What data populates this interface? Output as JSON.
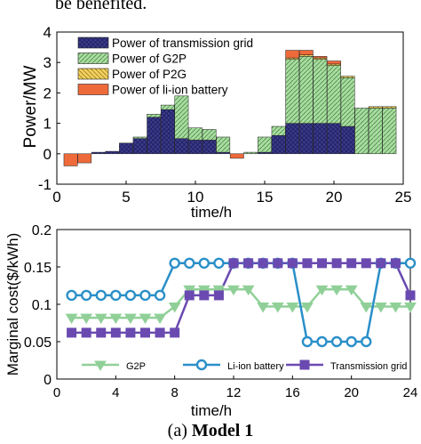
{
  "header_fragment": "be benefited.",
  "caption": {
    "prefix": "(a) ",
    "bold": "Model 1"
  },
  "colors": {
    "grid": "#3b3b8c",
    "g2p": "#a8dca0",
    "p2g": "#f2d060",
    "battery": "#ee6a3a",
    "line": "#2a8fc8",
    "g2p_line": "#90d098",
    "grid_line": "#6a4ab0"
  },
  "chart_data": [
    {
      "type": "bar",
      "stacked": true,
      "xlabel": "time/h",
      "ylabel": "Power/MW",
      "xlim": [
        0,
        25
      ],
      "ylim": [
        -1,
        4
      ],
      "xticks": [
        "0",
        "5",
        "10",
        "15",
        "20",
        "25"
      ],
      "yticks": [
        "-1",
        "0",
        "1",
        "2",
        "3",
        "4"
      ],
      "legend_position": "top-left",
      "x": [
        1,
        2,
        3,
        4,
        5,
        6,
        7,
        8,
        9,
        10,
        11,
        12,
        13,
        14,
        15,
        16,
        17,
        18,
        19,
        20,
        21,
        22,
        23,
        24
      ],
      "series": [
        {
          "name": "Power of transmission grid",
          "values": [
            0,
            0,
            0.05,
            0.08,
            0.35,
            0.5,
            1.2,
            1.45,
            0.5,
            0.45,
            0.45,
            0.05,
            0,
            0,
            0.05,
            0.6,
            1.0,
            1.0,
            1.0,
            1.0,
            0.9,
            0,
            0,
            0
          ]
        },
        {
          "name": "Power of G2P",
          "values": [
            0,
            0,
            0,
            0,
            0,
            0.05,
            0.1,
            0.15,
            1.4,
            0.4,
            0.35,
            0.5,
            0,
            0.05,
            0.5,
            0.3,
            2.1,
            2.2,
            2.1,
            1.9,
            1.6,
            1.5,
            1.5,
            1.5
          ]
        },
        {
          "name": "Power of P2G",
          "values": [
            0,
            0,
            0,
            0,
            0,
            0,
            0,
            0,
            0,
            0,
            0,
            0,
            0,
            0,
            0,
            0,
            0.05,
            0.05,
            0.05,
            0.05,
            0.05,
            0,
            0.05,
            0.05
          ]
        },
        {
          "name": "Power of li-ion battery",
          "values": [
            -0.4,
            -0.3,
            0,
            0,
            0,
            0,
            0,
            0,
            0,
            0,
            0,
            0,
            -0.15,
            0,
            0,
            0,
            0.25,
            0.15,
            0.05,
            0.1,
            0,
            0,
            0,
            0
          ]
        }
      ]
    },
    {
      "type": "line",
      "xlabel": "time/h",
      "ylabel": "Marginal cost($/kWh)",
      "xlim": [
        0,
        24
      ],
      "ylim": [
        0,
        0.2
      ],
      "xticks": [
        "0",
        "4",
        "8",
        "12",
        "16",
        "20",
        "24"
      ],
      "yticks": [
        "0",
        "0.05",
        "0.1",
        "0.15",
        "0.2"
      ],
      "legend_position": "bottom",
      "x": [
        1,
        2,
        3,
        4,
        5,
        6,
        7,
        8,
        9,
        10,
        11,
        12,
        13,
        14,
        15,
        16,
        17,
        18,
        19,
        20,
        21,
        22,
        23,
        24
      ],
      "series": [
        {
          "name": "G2P",
          "values": [
            0.082,
            0.082,
            0.082,
            0.082,
            0.082,
            0.082,
            0.082,
            0.097,
            0.12,
            0.12,
            0.12,
            0.12,
            0.12,
            0.097,
            0.097,
            0.097,
            0.097,
            0.12,
            0.12,
            0.12,
            0.097,
            0.097,
            0.097,
            0.097
          ]
        },
        {
          "name": "Li-ion battery",
          "values": [
            0.112,
            0.112,
            0.112,
            0.112,
            0.112,
            0.112,
            0.112,
            0.155,
            0.155,
            0.155,
            0.155,
            0.155,
            0.155,
            0.155,
            0.155,
            0.155,
            0.05,
            0.05,
            0.05,
            0.05,
            0.05,
            0.155,
            0.155,
            0.155
          ]
        },
        {
          "name": "Transmission grid",
          "values": [
            0.062,
            0.062,
            0.062,
            0.062,
            0.062,
            0.062,
            0.062,
            0.062,
            0.112,
            0.112,
            0.112,
            0.155,
            0.155,
            0.155,
            0.155,
            0.155,
            0.155,
            0.155,
            0.155,
            0.155,
            0.155,
            0.155,
            0.155,
            0.112
          ]
        }
      ]
    }
  ]
}
